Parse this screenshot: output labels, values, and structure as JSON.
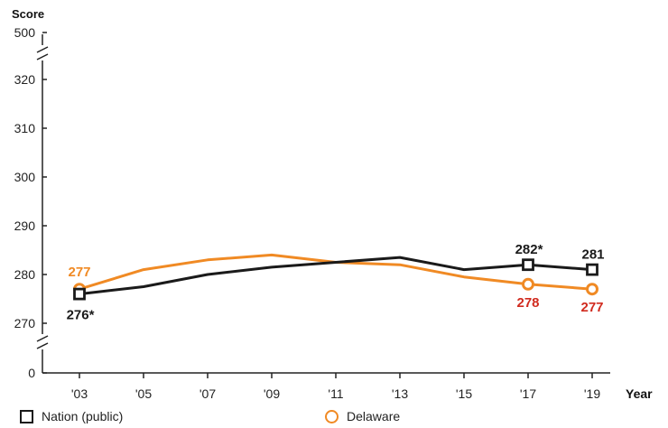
{
  "chart_data": {
    "type": "line",
    "ylabel": "Score",
    "xlabel": "Year",
    "categories": [
      "'03",
      "'05",
      "'07",
      "'09",
      "'11",
      "'13",
      "'15",
      "'17",
      "'19"
    ],
    "y_ticks": [
      "500",
      "320",
      "310",
      "300",
      "290",
      "280",
      "270",
      "0"
    ],
    "series": [
      {
        "name": "Nation (public)",
        "color": "#1a1a1a",
        "marker": "square",
        "values": [
          276,
          277.5,
          280,
          281.5,
          282.5,
          283.5,
          281,
          282,
          281
        ],
        "labels": [
          {
            "index": 0,
            "text": "276*",
            "color": "#1a1a1a"
          },
          {
            "index": 7,
            "text": "282*",
            "color": "#1a1a1a"
          },
          {
            "index": 8,
            "text": "281",
            "color": "#1a1a1a"
          }
        ]
      },
      {
        "name": "Delaware",
        "color": "#f08a24",
        "marker": "circle",
        "values": [
          277,
          281,
          283,
          284,
          282.5,
          282,
          279.5,
          278,
          277
        ],
        "labels": [
          {
            "index": 0,
            "text": "277",
            "color": "#f08a24"
          },
          {
            "index": 7,
            "text": "278",
            "color": "#d12b1f"
          },
          {
            "index": 8,
            "text": "277",
            "color": "#d12b1f"
          }
        ]
      }
    ],
    "markers_at": [
      0,
      7,
      8
    ],
    "axis_breaks": true
  }
}
